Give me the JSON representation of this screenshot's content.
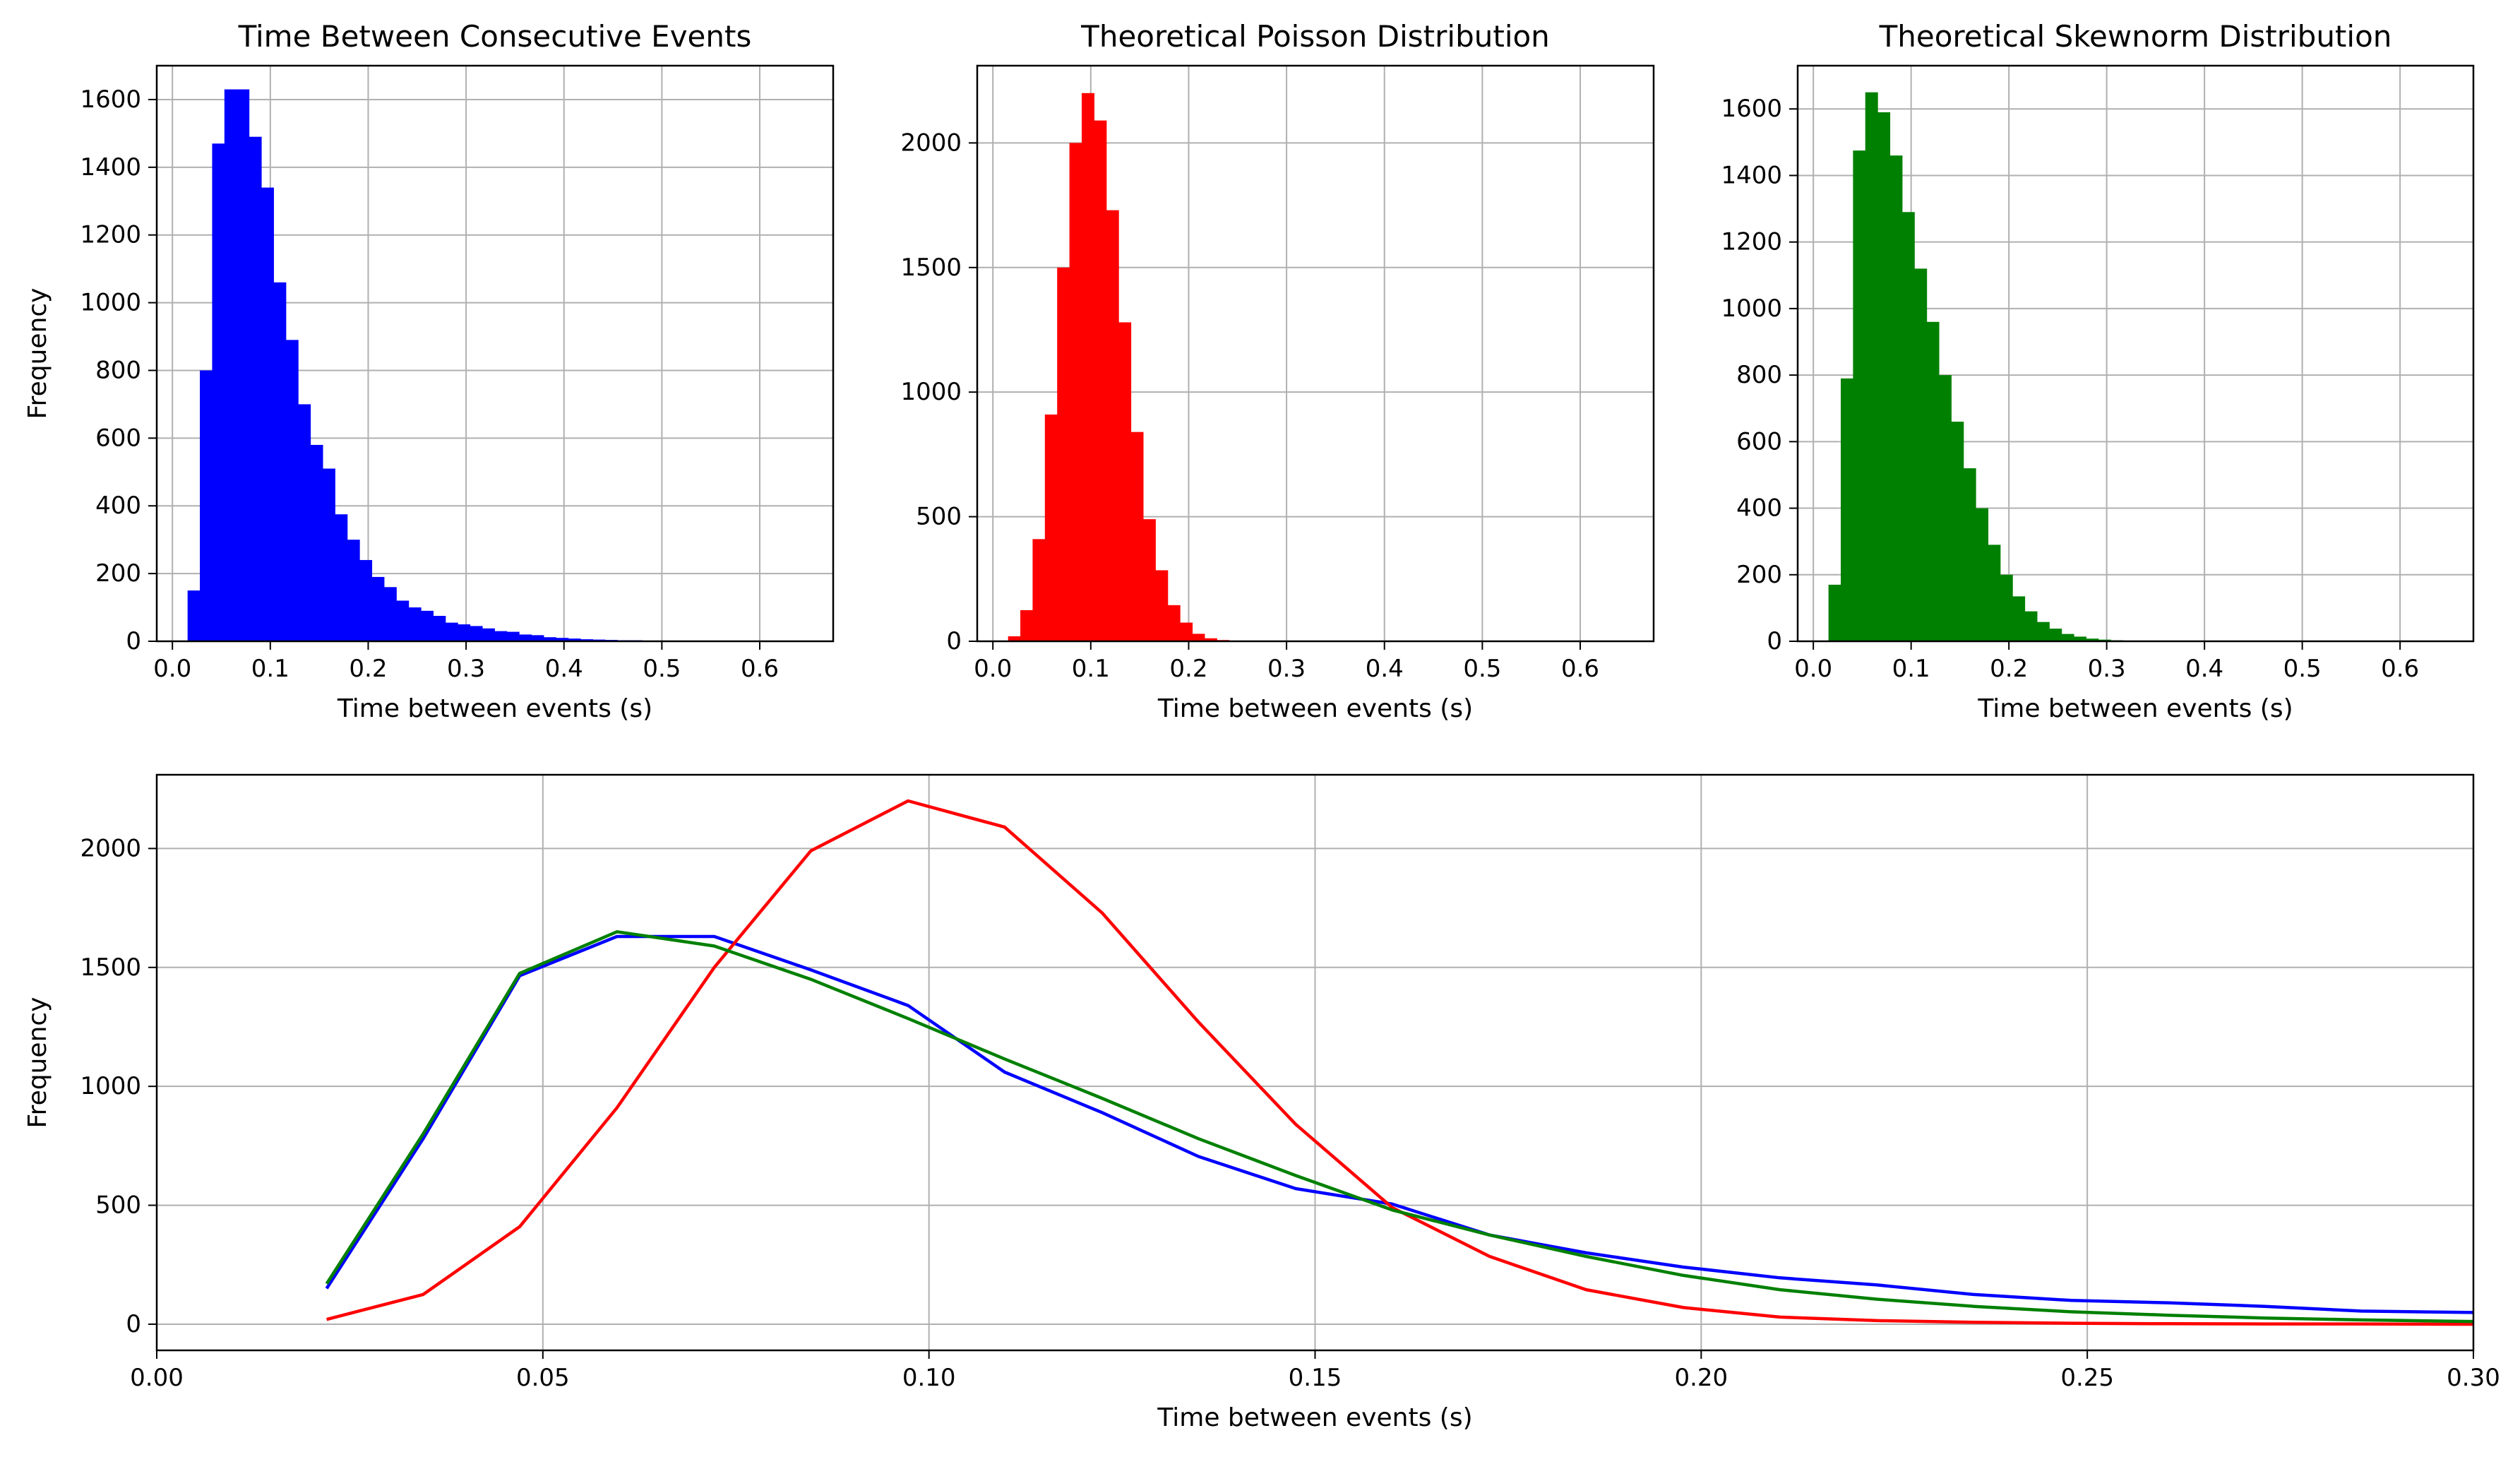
{
  "figure": {
    "colors": {
      "blue": "#0000ff",
      "red": "#ff0000",
      "green": "#008000",
      "grid": "#b0b0b0",
      "axis": "#000000"
    }
  },
  "chart_data": [
    {
      "type": "bar",
      "id": "hist-observed",
      "title": "Time Between Consecutive Events",
      "xlabel": "Time between events (s)",
      "ylabel": "Frequency",
      "color": "#0000ff",
      "xlim": [
        -0.016,
        0.675
      ],
      "ylim": [
        0,
        1700
      ],
      "xticks": [
        0.0,
        0.1,
        0.2,
        0.3,
        0.4,
        0.5,
        0.6
      ],
      "xtick_labels": [
        "0.0",
        "0.1",
        "0.2",
        "0.3",
        "0.4",
        "0.5",
        "0.6"
      ],
      "yticks": [
        0,
        200,
        400,
        600,
        800,
        1000,
        1200,
        1400,
        1600
      ],
      "ytick_labels": [
        "0",
        "200",
        "400",
        "600",
        "800",
        "1000",
        "1200",
        "1400",
        "1600"
      ],
      "grid": true,
      "bin_start": 0.0155,
      "bin_width": 0.01254,
      "values": [
        150,
        800,
        1470,
        1630,
        1630,
        1490,
        1340,
        1060,
        890,
        700,
        580,
        510,
        375,
        300,
        240,
        190,
        160,
        120,
        100,
        90,
        75,
        55,
        50,
        45,
        38,
        30,
        28,
        20,
        18,
        12,
        10,
        8,
        6,
        5,
        4,
        3,
        3,
        2,
        2,
        1,
        1,
        1,
        1,
        1,
        1,
        1,
        0,
        0,
        0,
        1
      ]
    },
    {
      "type": "bar",
      "id": "hist-poisson",
      "title": "Theoretical Poisson Distribution",
      "xlabel": "Time between events (s)",
      "ylabel": "",
      "color": "#ff0000",
      "xlim": [
        -0.016,
        0.675
      ],
      "ylim": [
        0,
        2310
      ],
      "xticks": [
        0.0,
        0.1,
        0.2,
        0.3,
        0.4,
        0.5,
        0.6
      ],
      "xtick_labels": [
        "0.0",
        "0.1",
        "0.2",
        "0.3",
        "0.4",
        "0.5",
        "0.6"
      ],
      "yticks": [
        0,
        500,
        1000,
        1500,
        2000
      ],
      "ytick_labels": [
        "0",
        "500",
        "1000",
        "1500",
        "2000"
      ],
      "grid": true,
      "bin_start": 0.0155,
      "bin_width": 0.01254,
      "values": [
        20,
        125,
        410,
        910,
        1500,
        2000,
        2200,
        2090,
        1730,
        1280,
        840,
        490,
        285,
        145,
        75,
        30,
        12,
        5,
        2,
        1
      ]
    },
    {
      "type": "bar",
      "id": "hist-skewnorm",
      "title": "Theoretical Skewnorm Distribution",
      "xlabel": "Time between events (s)",
      "ylabel": "",
      "color": "#008000",
      "xlim": [
        -0.016,
        0.675
      ],
      "ylim": [
        0,
        1730
      ],
      "xticks": [
        0.0,
        0.1,
        0.2,
        0.3,
        0.4,
        0.5,
        0.6
      ],
      "xtick_labels": [
        "0.0",
        "0.1",
        "0.2",
        "0.3",
        "0.4",
        "0.5",
        "0.6"
      ],
      "yticks": [
        0,
        200,
        400,
        600,
        800,
        1000,
        1200,
        1400,
        1600
      ],
      "ytick_labels": [
        "0",
        "200",
        "400",
        "600",
        "800",
        "1000",
        "1200",
        "1400",
        "1600"
      ],
      "grid": true,
      "bin_start": 0.0155,
      "bin_width": 0.01254,
      "values": [
        170,
        790,
        1475,
        1650,
        1590,
        1460,
        1290,
        1120,
        960,
        800,
        660,
        520,
        400,
        290,
        200,
        135,
        90,
        58,
        38,
        22,
        14,
        8,
        5,
        3
      ]
    },
    {
      "type": "line",
      "id": "line-compare",
      "title": "",
      "xlabel": "Time between events (s)",
      "ylabel": "Frequency",
      "xlim": [
        0.0,
        0.3
      ],
      "ylim": [
        -110,
        2310
      ],
      "xticks": [
        0.0,
        0.05,
        0.1,
        0.15,
        0.2,
        0.25,
        0.3
      ],
      "xtick_labels": [
        "0.00",
        "0.05",
        "0.10",
        "0.15",
        "0.20",
        "0.25",
        "0.30"
      ],
      "yticks": [
        0,
        500,
        1000,
        1500,
        2000
      ],
      "ytick_labels": [
        "0",
        "500",
        "1000",
        "1500",
        "2000"
      ],
      "grid": true,
      "x": [
        0.022,
        0.0345,
        0.047,
        0.0596,
        0.0722,
        0.0847,
        0.0973,
        0.1098,
        0.1224,
        0.1349,
        0.1475,
        0.16,
        0.1726,
        0.1851,
        0.1977,
        0.2102,
        0.2228,
        0.2353,
        0.2479,
        0.2604,
        0.273,
        0.2855,
        0.2981,
        0.3106
      ],
      "series": [
        {
          "color": "#0000ff",
          "values": [
            150,
            780,
            1465,
            1630,
            1630,
            1490,
            1340,
            1060,
            890,
            705,
            570,
            505,
            375,
            300,
            240,
            195,
            165,
            125,
            100,
            90,
            75,
            55,
            50,
            45
          ]
        },
        {
          "color": "#ff0000",
          "values": [
            20,
            125,
            410,
            910,
            1500,
            1990,
            2200,
            2090,
            1730,
            1270,
            840,
            490,
            285,
            145,
            70,
            30,
            15,
            8,
            4,
            2,
            1,
            1,
            0,
            0
          ]
        },
        {
          "color": "#008000",
          "values": [
            170,
            800,
            1475,
            1650,
            1590,
            1450,
            1285,
            1115,
            950,
            780,
            625,
            480,
            375,
            285,
            205,
            145,
            105,
            75,
            52,
            38,
            26,
            18,
            12,
            8
          ]
        }
      ]
    }
  ]
}
